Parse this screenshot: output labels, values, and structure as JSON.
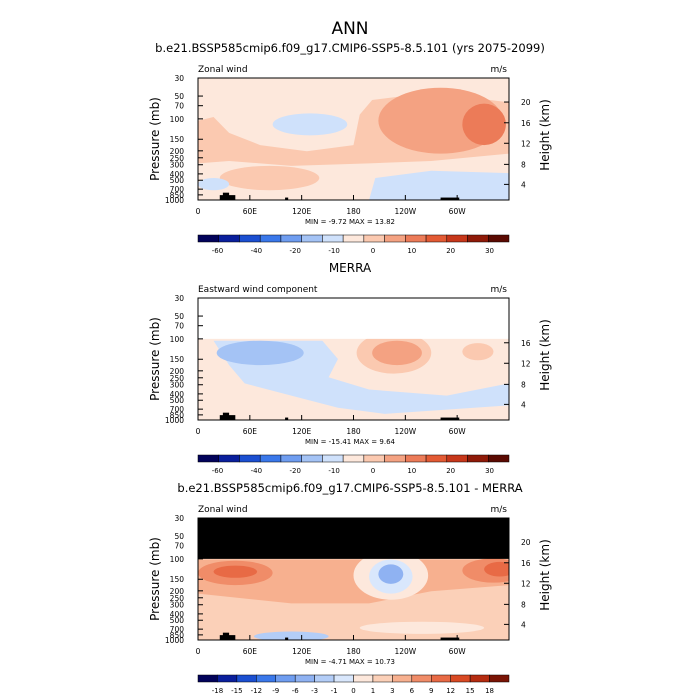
{
  "title": "ANN",
  "chart_data": [
    {
      "type": "heatmap",
      "title": "b.e21.BSSP585cmip6.f09_g17.CMIP6-SSP5-8.5.101 (yrs 2075-2099)",
      "left_label": "Zonal wind",
      "units": "m/s",
      "ylabel": "Pressure (mb)",
      "ylabel_right": "Height (km)",
      "pressure_ticks": [
        "30",
        "50",
        "70",
        "100",
        "150",
        "200",
        "250",
        "300",
        "400",
        "500",
        "700",
        "850",
        "1000"
      ],
      "height_ticks": [
        "20",
        "16",
        "12",
        "8",
        "4"
      ],
      "lon_ticks": [
        "0",
        "60E",
        "120E",
        "180",
        "120W",
        "60W"
      ],
      "stats": "MIN = -9.72  MAX = 13.82",
      "levels": [
        "-60",
        "-40",
        "-20",
        "-10",
        "0",
        "10",
        "20",
        "30"
      ],
      "colors": [
        "#02035a",
        "#0a1f9c",
        "#1b4fd1",
        "#3a78ea",
        "#6f9df0",
        "#a4c3f5",
        "#cfe1fb",
        "#fde8dc",
        "#fbc9b0",
        "#f4a282",
        "#ec7b58",
        "#e35a34",
        "#c7371a",
        "#8f1a08",
        "#5b0a02"
      ],
      "masked_above": false
    },
    {
      "type": "heatmap",
      "title": "MERRA",
      "left_label": "Eastward wind component",
      "units": "m/s",
      "ylabel": "Pressure (mb)",
      "ylabel_right": "Height (km)",
      "pressure_ticks": [
        "30",
        "50",
        "70",
        "100",
        "150",
        "200",
        "250",
        "300",
        "400",
        "500",
        "700",
        "850",
        "1000"
      ],
      "height_ticks": [
        "16",
        "12",
        "8",
        "4"
      ],
      "lon_ticks": [
        "0",
        "60E",
        "120E",
        "180",
        "120W",
        "60W"
      ],
      "stats": "MIN = -15.41  MAX =  9.64",
      "levels": [
        "-60",
        "-40",
        "-20",
        "-10",
        "0",
        "10",
        "20",
        "30"
      ],
      "colors": [
        "#02035a",
        "#0a1f9c",
        "#1b4fd1",
        "#3a78ea",
        "#6f9df0",
        "#a4c3f5",
        "#cfe1fb",
        "#fde8dc",
        "#fbc9b0",
        "#f4a282",
        "#ec7b58",
        "#e35a34",
        "#c7371a",
        "#8f1a08",
        "#5b0a02"
      ],
      "masked_above": "white"
    },
    {
      "type": "heatmap",
      "title": "b.e21.BSSP585cmip6.f09_g17.CMIP6-SSP5-8.5.101 - MERRA",
      "left_label": "Zonal wind",
      "units": "m/s",
      "ylabel": "Pressure (mb)",
      "ylabel_right": "Height (km)",
      "pressure_ticks": [
        "30",
        "50",
        "70",
        "100",
        "150",
        "200",
        "250",
        "300",
        "400",
        "500",
        "700",
        "850",
        "1000"
      ],
      "height_ticks": [
        "20",
        "16",
        "12",
        "8",
        "4"
      ],
      "lon_ticks": [
        "0",
        "60E",
        "120E",
        "180",
        "120W",
        "60W"
      ],
      "stats": "MIN = -4.71  MAX = 10.73",
      "levels": [
        "-18",
        "-15",
        "-12",
        "-9",
        "-6",
        "-3",
        "-1",
        "0",
        "1",
        "3",
        "6",
        "9",
        "12",
        "15",
        "18"
      ],
      "colors": [
        "#02035a",
        "#0a1f9c",
        "#1b4fd1",
        "#3a78ea",
        "#6f9df0",
        "#8fb2f2",
        "#b3cdf7",
        "#d9e7fc",
        "#fde8dc",
        "#fbd0b8",
        "#f7b08f",
        "#f08c68",
        "#e86a45",
        "#d94a24",
        "#b52c10",
        "#7a1405"
      ],
      "masked_above": "black"
    }
  ]
}
